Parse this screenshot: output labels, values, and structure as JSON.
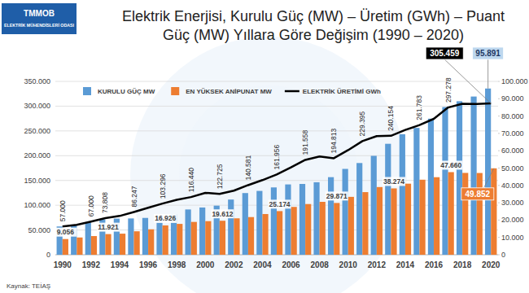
{
  "chart_data": {
    "type": "bar",
    "title": "Elektrik Enerjisi, Kurulu Güç (MW) – Üretim (GWh) – Puant Güç (MW) Yıllara Göre Değişim (1990 – 2020)",
    "logo": [
      "TMMOB",
      "ELEKTRİK MÜHENDİSLERİ ODASI"
    ],
    "source": "Kaynak: TEİAŞ",
    "categories": [
      "1990",
      null,
      "1992",
      null,
      "1994",
      null,
      "1996",
      null,
      "1998",
      null,
      "2000",
      null,
      "2002",
      null,
      "2004",
      null,
      "2006",
      null,
      "2008",
      null,
      "2010",
      null,
      "2012",
      null,
      "2014",
      null,
      "2016",
      null,
      "2018",
      null,
      "2020"
    ],
    "series": [
      {
        "name": "KURULU GÜÇ MW",
        "type": "bar",
        "axis": "y2",
        "color": "#5b9bd5",
        "values": [
          16318,
          17209,
          18716,
          20337,
          20860,
          20952,
          21249,
          21892,
          23354,
          26119,
          27264,
          28332,
          31846,
          35587,
          36824,
          38844,
          40565,
          40836,
          41817,
          44761,
          49524,
          52911,
          57059,
          64008,
          69520,
          73147,
          78497,
          85200,
          88551,
          91267,
          95891
        ],
        "value_labels": [
          null,
          null,
          null,
          null,
          null,
          null,
          null,
          null,
          null,
          null,
          null,
          null,
          null,
          null,
          null,
          null,
          null,
          null,
          null,
          null,
          null,
          null,
          null,
          null,
          null,
          null,
          null,
          null,
          null,
          null,
          "95.891"
        ]
      },
      {
        "name": "EN YÜKSEK ANİPUNAT MW",
        "type": "bar",
        "axis": "y2",
        "color": "#ed7d31",
        "values": [
          9056,
          9965,
          10776,
          11921,
          12165,
          13536,
          14678,
          16926,
          17799,
          18938,
          19390,
          19612,
          21006,
          21729,
          23485,
          25174,
          27594,
          29249,
          30517,
          29871,
          33392,
          36122,
          39045,
          38274,
          41003,
          43289,
          44734,
          47660,
          47211,
          47159,
          49852
        ],
        "value_labels": [
          "9.056",
          null,
          null,
          "11.921",
          null,
          null,
          null,
          "16.926",
          null,
          null,
          null,
          "19.612",
          null,
          null,
          null,
          "25.174",
          null,
          null,
          null,
          "29.871",
          null,
          null,
          null,
          "38.274",
          null,
          null,
          null,
          "47.660",
          null,
          null,
          "49.852"
        ]
      },
      {
        "name": "ELEKTRİK ÜRETİMİ GWh",
        "type": "line",
        "color": "#000000",
        "values": [
          57000,
          60246,
          67000,
          73808,
          78322,
          86247,
          94862,
          103296,
          111022,
          116440,
          124922,
          122725,
          129400,
          140581,
          150698,
          161956,
          176300,
          191558,
          198418,
          194813,
          211208,
          229395,
          239497,
          240154,
          251963,
          261783,
          274408,
          297278,
          304802,
          304252,
          305459
        ],
        "value_labels": [
          "57.000",
          null,
          "67.000",
          "73.808",
          null,
          "86.247",
          null,
          "103.296",
          null,
          "116.440",
          null,
          "122.725",
          null,
          "140.581",
          null,
          "161.956",
          null,
          "191.558",
          null,
          "194.813",
          null,
          "229.395",
          null,
          "240.154",
          null,
          "261.783",
          null,
          "297.278",
          null,
          null,
          "305.459"
        ]
      }
    ],
    "ylim": [
      0,
      350000
    ],
    "yticks": [
      0,
      {
        "value": 50000,
        "label": "50.000"
      },
      {
        "value": 100000,
        "label": "100.000"
      },
      {
        "value": 150000,
        "label": "150.000"
      },
      {
        "value": 200000,
        "label": "200.000"
      },
      {
        "value": 250000,
        "label": "250.000"
      },
      {
        "value": 300000,
        "label": "300.000"
      },
      {
        "value": 350000,
        "label": "350.000"
      }
    ],
    "y2lim": [
      0,
      100000
    ],
    "y2ticks": [
      0,
      {
        "value": 10000,
        "label": "10.000"
      },
      {
        "value": 20000,
        "label": "20.000"
      },
      {
        "value": 30000,
        "label": "30.000"
      },
      {
        "value": 40000,
        "label": "40.000"
      },
      {
        "value": 50000,
        "label": "50.000"
      },
      {
        "value": 60000,
        "label": "60.000"
      },
      {
        "value": 70000,
        "label": "70.000"
      },
      {
        "value": 80000,
        "label": "80.000"
      },
      {
        "value": 90000,
        "label": "90.000"
      },
      {
        "value": 100000,
        "label": "100.000"
      }
    ],
    "grid": true,
    "legend": "top-left",
    "data_labels": true
  }
}
